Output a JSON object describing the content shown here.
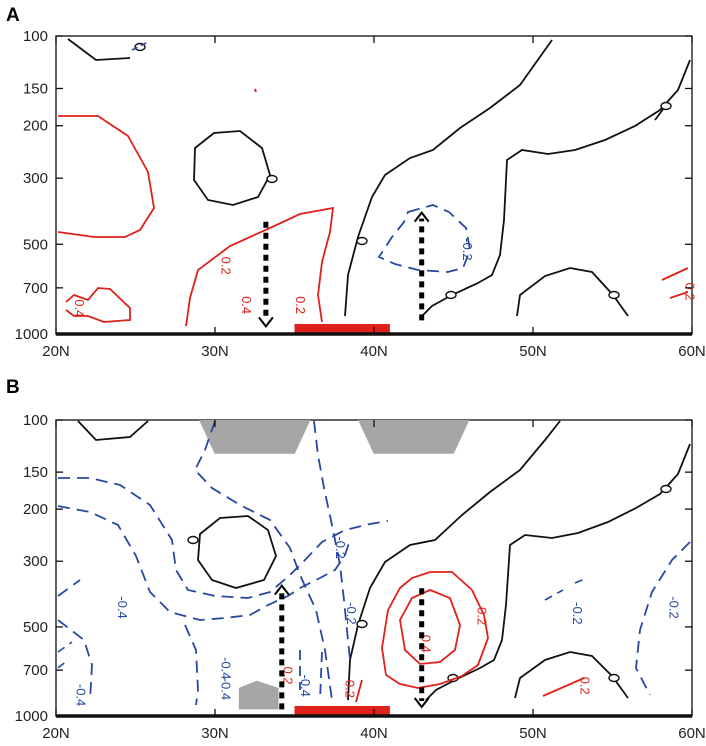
{
  "chart_data": [
    {
      "type": "contour",
      "panel_label": "A",
      "x_ticks": [
        "20N",
        "30N",
        "40N",
        "50N",
        "60N"
      ],
      "x_values": [
        20,
        30,
        40,
        50,
        60
      ],
      "xlim": [
        20,
        60
      ],
      "y_ticks": [
        "100",
        "150",
        "200",
        "300",
        "500",
        "700",
        "1000"
      ],
      "y_values": [
        100,
        150,
        200,
        300,
        500,
        700,
        1000
      ],
      "ylim": [
        100,
        1000
      ],
      "y_scale": "log",
      "y_reversed": true,
      "contour_labels": [
        {
          "text": "0.2",
          "sign": "positive",
          "x": 30.4,
          "y": 590
        },
        {
          "text": "0.4",
          "sign": "positive",
          "x": 21.2,
          "y": 820
        },
        {
          "text": "0.4",
          "sign": "positive",
          "x": 31.7,
          "y": 800
        },
        {
          "text": "0.2",
          "sign": "positive",
          "x": 35.1,
          "y": 800
        },
        {
          "text": "-0.2",
          "sign": "negative",
          "x": 45.6,
          "y": 520
        },
        {
          "text": "0.2",
          "sign": "positive",
          "x": 59.6,
          "y": 720
        }
      ],
      "arrows": [
        {
          "x": 33.2,
          "direction": "down",
          "y_from": 420,
          "y_to": 900
        },
        {
          "x": 43.0,
          "direction": "up",
          "y_from": 900,
          "y_to": 410
        }
      ],
      "highlight_bar": {
        "x_from": 35,
        "x_to": 41,
        "color": "#e0201b"
      },
      "shaded_regions": []
    },
    {
      "type": "contour",
      "panel_label": "B",
      "x_ticks": [
        "20N",
        "30N",
        "40N",
        "50N",
        "60N"
      ],
      "x_values": [
        20,
        30,
        40,
        50,
        60
      ],
      "xlim": [
        20,
        60
      ],
      "y_ticks": [
        "100",
        "150",
        "200",
        "300",
        "500",
        "700",
        "1000"
      ],
      "y_values": [
        100,
        150,
        200,
        300,
        500,
        700,
        1000
      ],
      "ylim": [
        100,
        1000
      ],
      "y_scale": "log",
      "y_reversed": true,
      "contour_labels": [
        {
          "text": "-0.2",
          "sign": "negative",
          "x": 37.6,
          "y": 270
        },
        {
          "text": "-0.4",
          "sign": "negative",
          "x": 23.9,
          "y": 430
        },
        {
          "text": "-0.2",
          "sign": "negative",
          "x": 38.3,
          "y": 450
        },
        {
          "text": "-0.4",
          "sign": "negative",
          "x": 30.4,
          "y": 690
        },
        {
          "text": "-0.4",
          "sign": "negative",
          "x": 30.4,
          "y": 810
        },
        {
          "text": "-0.4",
          "sign": "negative",
          "x": 21.3,
          "y": 850
        },
        {
          "text": "0.2",
          "sign": "positive",
          "x": 34.3,
          "y": 730
        },
        {
          "text": "-0.4",
          "sign": "negative",
          "x": 35.4,
          "y": 790
        },
        {
          "text": "0.2",
          "sign": "positive",
          "x": 38.2,
          "y": 810
        },
        {
          "text": "0.4",
          "sign": "positive",
          "x": 43.0,
          "y": 570
        },
        {
          "text": "0.2",
          "sign": "positive",
          "x": 46.5,
          "y": 460
        },
        {
          "text": "-0.2",
          "sign": "negative",
          "x": 52.5,
          "y": 450
        },
        {
          "text": "-0.2",
          "sign": "negative",
          "x": 58.6,
          "y": 430
        },
        {
          "text": "0.2",
          "sign": "positive",
          "x": 53.0,
          "y": 790
        }
      ],
      "arrows": [
        {
          "x": 34.2,
          "direction": "up",
          "y_from": 950,
          "y_to": 380
        },
        {
          "x": 43.0,
          "direction": "down",
          "y_from": 370,
          "y_to": 890
        }
      ],
      "highlight_bar": {
        "x_from": 35,
        "x_to": 41,
        "color": "#e0201b"
      },
      "shaded_regions": [
        {
          "x_from": 29,
          "x_to": 36,
          "y_from": 100,
          "y_to": 130,
          "shape": "trapezoid"
        },
        {
          "x_from": 39,
          "x_to": 46,
          "y_from": 100,
          "y_to": 130,
          "shape": "trapezoid"
        },
        {
          "x_from": 31.5,
          "x_to": 34,
          "y_from": 760,
          "y_to": 950,
          "shape": "hexagon"
        }
      ]
    }
  ],
  "colors": {
    "positive": "#e0201b",
    "negative": "#2747a3",
    "zero": "#111111",
    "shade": "#a6a6a6",
    "bar": "#e0201b"
  }
}
